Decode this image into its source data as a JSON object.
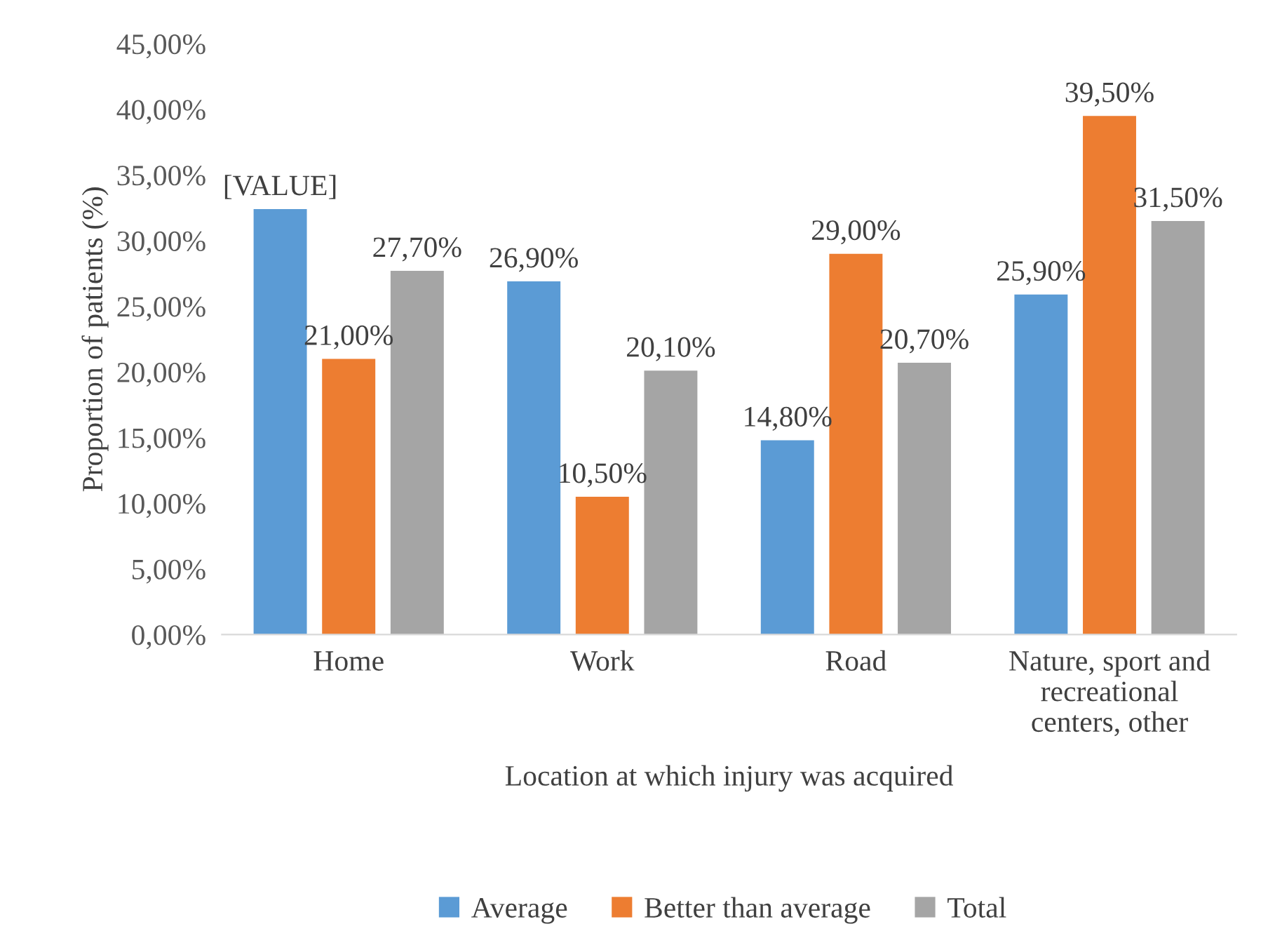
{
  "chart_data": {
    "type": "bar",
    "categories": [
      "Home",
      "Work",
      "Road",
      "Nature, sport and\nrecreational\ncenters, other"
    ],
    "xlabel": "Location at which injury was acquired",
    "ylabel": "Proportion of patients (%)",
    "series": [
      {
        "name": "Average",
        "color": "#5b9bd5",
        "values": [
          32.4,
          26.9,
          14.8,
          25.9
        ],
        "value_labels": [
          "[VALUE]",
          "26,90%",
          "14,80%",
          "25,90%"
        ]
      },
      {
        "name": "Better than average",
        "color": "#ed7d31",
        "values": [
          21.0,
          10.5,
          29.0,
          39.5
        ],
        "value_labels": [
          "21,00%",
          "10,50%",
          "29,00%",
          "39,50%"
        ]
      },
      {
        "name": "Total",
        "color": "#a5a5a5",
        "values": [
          27.7,
          20.1,
          20.7,
          31.5
        ],
        "value_labels": [
          "27,70%",
          "20,10%",
          "20,70%",
          "31,50%"
        ]
      }
    ],
    "ylim": [
      0,
      45
    ],
    "yticks": [
      {
        "value": 0,
        "label": "0,00%"
      },
      {
        "value": 5,
        "label": "5,00%"
      },
      {
        "value": 10,
        "label": "10,00%"
      },
      {
        "value": 15,
        "label": "15,00%"
      },
      {
        "value": 20,
        "label": "20,00%"
      },
      {
        "value": 25,
        "label": "25,00%"
      },
      {
        "value": 30,
        "label": "30,00%"
      },
      {
        "value": 35,
        "label": "35,00%"
      },
      {
        "value": 40,
        "label": "40,00%"
      },
      {
        "value": 45,
        "label": "45,00%"
      }
    ],
    "grid": false,
    "legend": "bottom"
  }
}
